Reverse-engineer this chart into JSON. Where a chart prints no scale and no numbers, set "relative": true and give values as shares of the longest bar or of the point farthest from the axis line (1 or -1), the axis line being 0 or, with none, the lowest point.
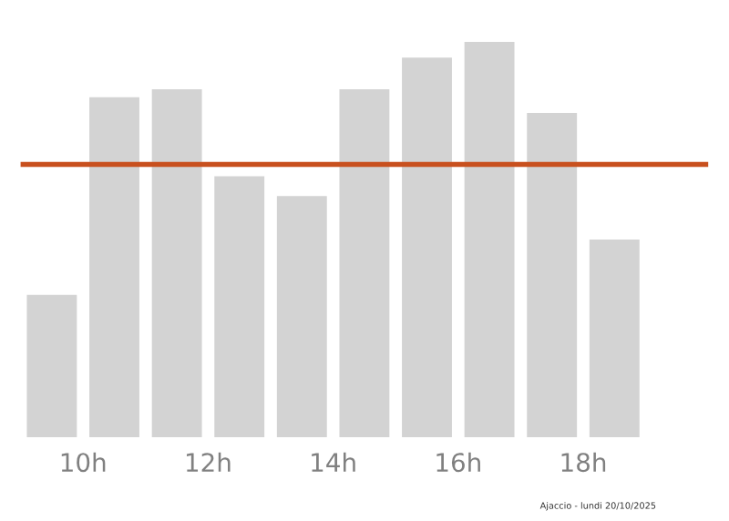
{
  "chart_data": {
    "type": "bar",
    "relative": true,
    "x": [
      9.5,
      10.5,
      11.5,
      12.5,
      13.5,
      14.5,
      15.5,
      16.5,
      17.5,
      18.5
    ],
    "values": [
      0.36,
      0.86,
      0.88,
      0.66,
      0.61,
      0.88,
      0.96,
      1,
      0.82,
      0.5
    ],
    "color": "#d3d3d3",
    "xlim": [
      9,
      20
    ],
    "xticks": [
      {
        "value": 10,
        "label": "10h"
      },
      {
        "value": 12,
        "label": "12h"
      },
      {
        "value": 14,
        "label": "14h"
      },
      {
        "value": 16,
        "label": "16h"
      },
      {
        "value": 18,
        "label": "18h"
      }
    ],
    "ref_lines": [
      {
        "axis": "y",
        "value": 0.69,
        "color": "#c8501e",
        "line_style": "solid"
      }
    ],
    "annotations": [
      "Ajaccio - lundi 20/10/2025"
    ],
    "grid": false,
    "legend": false
  }
}
